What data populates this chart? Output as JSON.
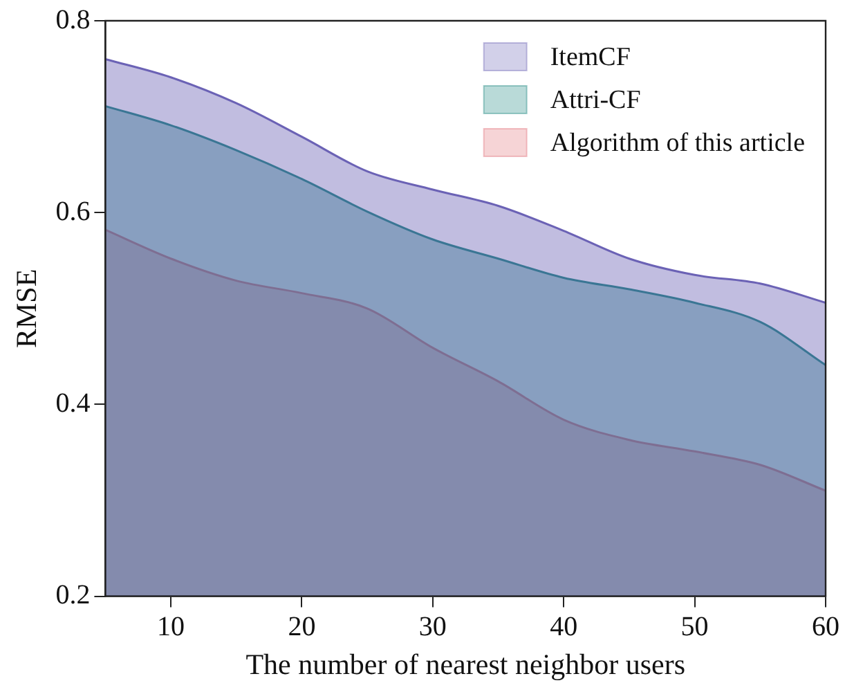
{
  "chart_data": {
    "type": "area",
    "xlabel": "The number of nearest neighbor users",
    "ylabel": "RMSE",
    "x": [
      5,
      10,
      15,
      20,
      25,
      30,
      35,
      40,
      45,
      50,
      55,
      60
    ],
    "series": [
      {
        "name": "ItemCF",
        "color": "#6b62b5",
        "values": [
          0.76,
          0.741,
          0.714,
          0.679,
          0.643,
          0.624,
          0.607,
          0.581,
          0.552,
          0.535,
          0.526,
          0.506
        ]
      },
      {
        "name": "Attri-CF",
        "color": "#18857d",
        "values": [
          0.711,
          0.691,
          0.665,
          0.635,
          0.601,
          0.572,
          0.552,
          0.532,
          0.52,
          0.506,
          0.486,
          0.441
        ]
      },
      {
        "name": "Algorithm of this article",
        "color": "#e06f78",
        "values": [
          0.582,
          0.552,
          0.529,
          0.516,
          0.5,
          0.459,
          0.424,
          0.384,
          0.363,
          0.351,
          0.337,
          0.31
        ]
      }
    ],
    "xlim": [
      5,
      60
    ],
    "xticks": [
      10,
      20,
      30,
      40,
      50,
      60
    ],
    "ylim": [
      0.2,
      0.8
    ],
    "yticks": [
      0.2,
      0.4,
      0.6,
      0.8
    ],
    "grid": false,
    "legend": "top right",
    "marker": "none",
    "line_style": "solid"
  }
}
